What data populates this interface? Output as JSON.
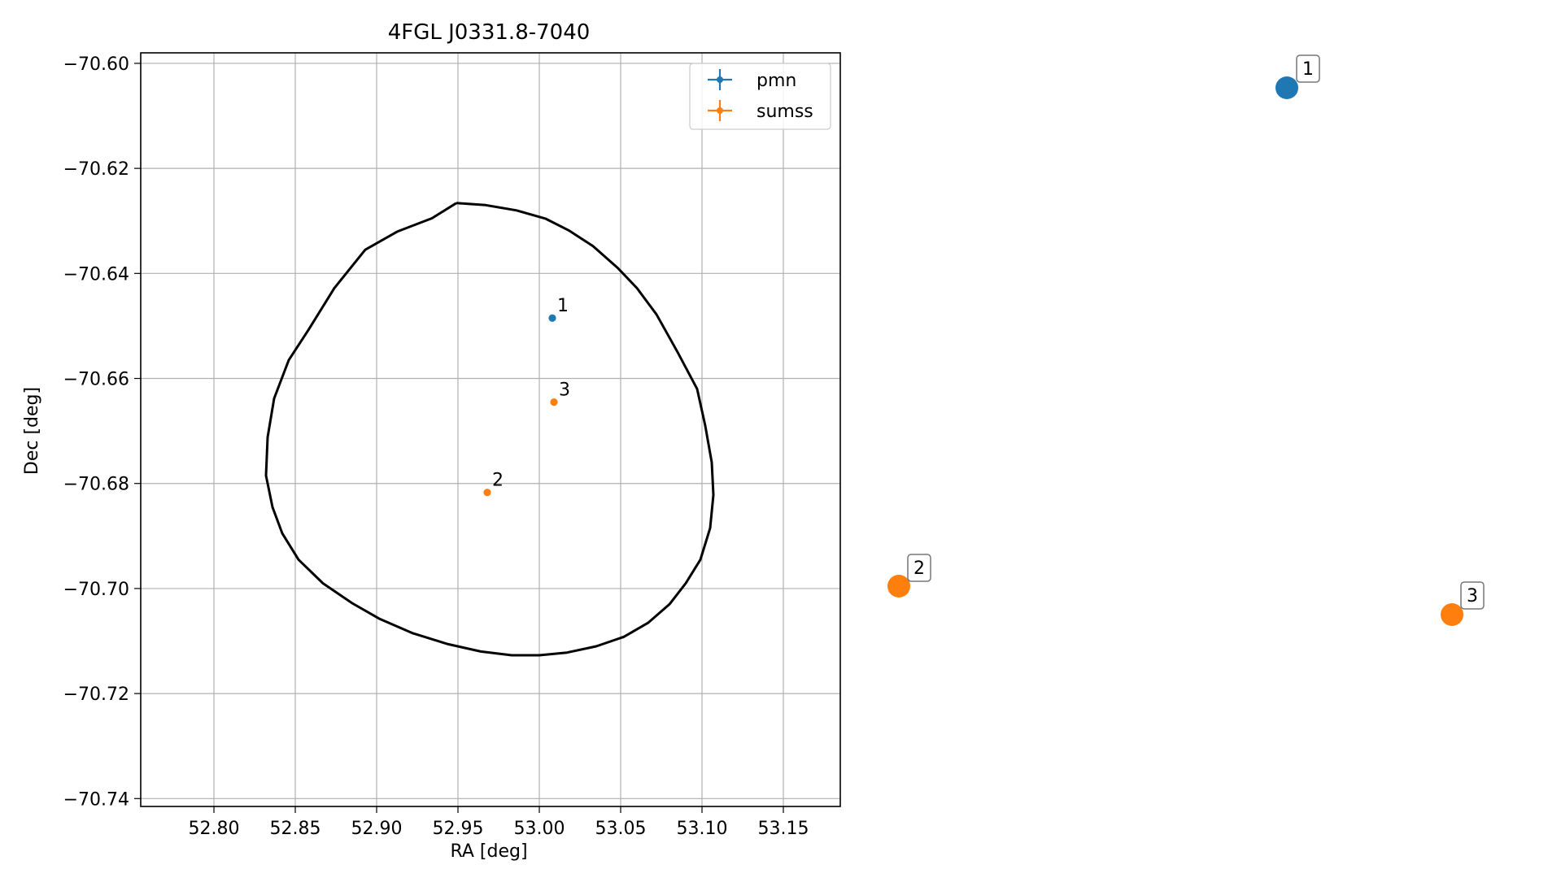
{
  "chart_data": [
    {
      "type": "scatter",
      "title": "4FGL J0331.8-7040",
      "xlabel": "RA [deg]",
      "ylabel": "Dec [deg]",
      "xlim": [
        52.755,
        53.185
      ],
      "ylim": [
        -70.7415,
        -70.598
      ],
      "x_ticks": [
        "52.80",
        "52.85",
        "52.90",
        "52.95",
        "53.00",
        "53.05",
        "53.10",
        "53.15"
      ],
      "y_ticks": [
        "−70.60",
        "−70.62",
        "−70.64",
        "−70.66",
        "−70.68",
        "−70.70",
        "−70.72",
        "−70.74"
      ],
      "grid": true,
      "legend_position": "top-right",
      "series": [
        {
          "name": "pmn",
          "color": "#1f77b4",
          "points": [
            {
              "label": "1",
              "x": 53.008,
              "y": -70.6485
            }
          ]
        },
        {
          "name": "sumss",
          "color": "#ff7f0e",
          "points": [
            {
              "label": "2",
              "x": 52.968,
              "y": -70.6817
            },
            {
              "label": "3",
              "x": 53.009,
              "y": -70.6645
            }
          ]
        }
      ],
      "error_ellipse": {
        "color": "#000000",
        "ra": [
          52.949,
          52.967,
          52.986,
          53.004,
          53.018,
          53.033,
          53.048,
          53.06,
          53.072,
          53.085,
          53.097,
          53.102,
          53.106,
          53.107,
          53.105,
          53.099,
          53.09,
          53.08,
          53.067,
          53.052,
          53.035,
          53.017,
          53.0,
          52.983,
          52.964,
          52.944,
          52.922,
          52.902,
          52.885,
          52.867,
          52.852,
          52.842,
          52.836,
          52.832,
          52.833,
          52.837,
          52.846,
          52.858,
          52.874,
          52.893,
          52.913,
          52.934,
          52.949
        ],
        "dec": [
          -70.6266,
          -70.627,
          -70.628,
          -70.6296,
          -70.6318,
          -70.6348,
          -70.6389,
          -70.6428,
          -70.6478,
          -70.655,
          -70.662,
          -70.669,
          -70.676,
          -70.6822,
          -70.6885,
          -70.6945,
          -70.699,
          -70.703,
          -70.7065,
          -70.7092,
          -70.711,
          -70.7122,
          -70.7127,
          -70.7127,
          -70.712,
          -70.7106,
          -70.7085,
          -70.7058,
          -70.7028,
          -70.699,
          -70.6945,
          -70.6895,
          -70.6845,
          -70.6785,
          -70.6712,
          -70.6638,
          -70.6565,
          -70.6508,
          -70.6428,
          -70.6355,
          -70.632,
          -70.6295,
          -70.6266
        ]
      }
    },
    {
      "type": "scatter",
      "title": "",
      "series": [
        {
          "name": "pmn",
          "color": "#1f77b4",
          "points": [
            {
              "label": "1"
            }
          ]
        },
        {
          "name": "sumss",
          "color": "#ff7f0e",
          "points": [
            {
              "label": "2"
            },
            {
              "label": "3"
            }
          ]
        }
      ]
    }
  ]
}
